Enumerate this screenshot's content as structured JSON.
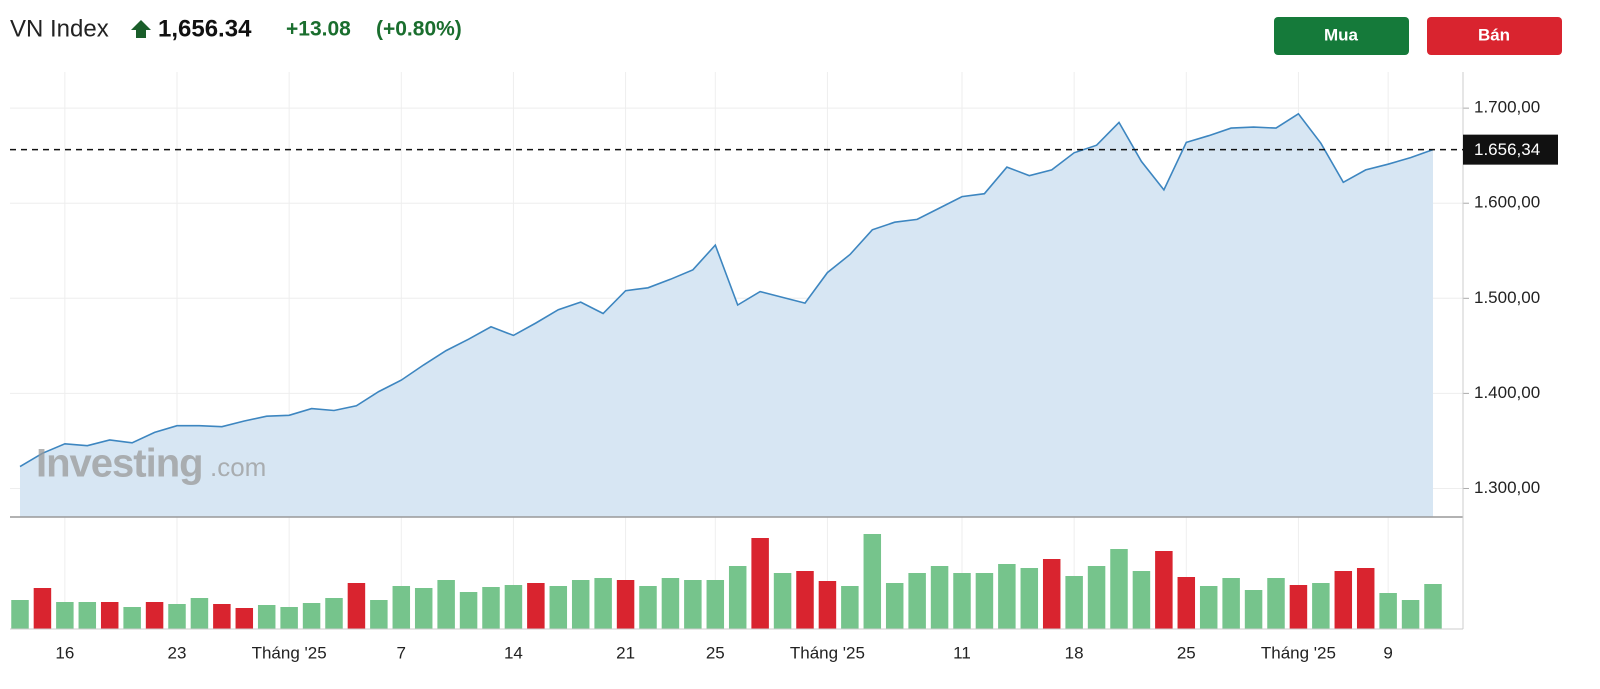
{
  "header": {
    "symbol": "VN Index",
    "price": "1,656.34",
    "change": "+13.08",
    "change_pct": "(+0.80%)"
  },
  "buttons": [
    "Mua",
    "Bán"
  ],
  "watermark": {
    "brand": "Investing",
    "suffix": ".com"
  },
  "chart_data": [
    {
      "type": "area",
      "categories": [
        null,
        null,
        "16",
        null,
        null,
        null,
        null,
        "23",
        null,
        null,
        null,
        null,
        "Tháng '25",
        null,
        null,
        null,
        null,
        "7",
        null,
        null,
        null,
        null,
        "14",
        null,
        null,
        null,
        null,
        "21",
        null,
        null,
        null,
        "25",
        null,
        null,
        null,
        null,
        "Tháng '25",
        null,
        null,
        null,
        null,
        null,
        "11",
        null,
        null,
        null,
        null,
        "18",
        null,
        null,
        null,
        null,
        "25",
        null,
        null,
        null,
        null,
        "Tháng '25",
        null,
        null,
        null,
        "9",
        null,
        null
      ],
      "values": [
        1323,
        1337,
        1347,
        1345,
        1351,
        1348,
        1359,
        1366,
        1366,
        1365,
        1371,
        1376,
        1377,
        1384,
        1382,
        1387,
        1402,
        1414,
        1430,
        1445,
        1457,
        1470,
        1461,
        1474,
        1488,
        1496,
        1484,
        1508,
        1511,
        1520,
        1530,
        1556,
        1493,
        1507,
        1501,
        1495,
        1527,
        1546,
        1572,
        1580,
        1583,
        1595,
        1607,
        1610,
        1638,
        1629,
        1635,
        1653,
        1661,
        1685,
        1644,
        1614,
        1664,
        1671,
        1679,
        1680,
        1679,
        1694,
        1663,
        1622,
        1635,
        1641,
        1648,
        1656.34
      ],
      "color": "#3d86c0",
      "fill": "#d7e6f3",
      "ylim": [
        1270,
        1738
      ],
      "yticks": [
        {
          "value": 1300,
          "label": "1.300,00"
        },
        {
          "value": 1400,
          "label": "1.400,00"
        },
        {
          "value": 1500,
          "label": "1.500,00"
        },
        {
          "value": 1600,
          "label": "1.600,00"
        },
        {
          "value": 1700,
          "label": "1.700,00"
        }
      ],
      "last_price": {
        "value": 1656.34,
        "label": "1.656,34"
      },
      "grid": true
    },
    {
      "type": "bar",
      "values": [
        29,
        41,
        27,
        27,
        27,
        22,
        27,
        25,
        31,
        25,
        21,
        24,
        22,
        26,
        31,
        46,
        29,
        43,
        41,
        49,
        37,
        42,
        44,
        46,
        43,
        49,
        51,
        49,
        43,
        51,
        49,
        49,
        63,
        91,
        56,
        58,
        48,
        43,
        95,
        46,
        56,
        63,
        56,
        56,
        65,
        61,
        70,
        53,
        63,
        80,
        58,
        78,
        52,
        43,
        51,
        39,
        51,
        44,
        46,
        58,
        61,
        36,
        29,
        45
      ],
      "colors": [
        "#76c48c",
        "#d9242f",
        "#76c48c",
        "#76c48c",
        "#d9242f",
        "#76c48c",
        "#d9242f",
        "#76c48c",
        "#76c48c",
        "#d9242f",
        "#d9242f",
        "#76c48c",
        "#76c48c",
        "#76c48c",
        "#76c48c",
        "#d9242f",
        "#76c48c",
        "#76c48c",
        "#76c48c",
        "#76c48c",
        "#76c48c",
        "#76c48c",
        "#76c48c",
        "#d9242f",
        "#76c48c",
        "#76c48c",
        "#76c48c",
        "#d9242f",
        "#76c48c",
        "#76c48c",
        "#76c48c",
        "#76c48c",
        "#76c48c",
        "#d9242f",
        "#76c48c",
        "#d9242f",
        "#d9242f",
        "#76c48c",
        "#76c48c",
        "#76c48c",
        "#76c48c",
        "#76c48c",
        "#76c48c",
        "#76c48c",
        "#76c48c",
        "#76c48c",
        "#d9242f",
        "#76c48c",
        "#76c48c",
        "#76c48c",
        "#76c48c",
        "#d9242f",
        "#d9242f",
        "#76c48c",
        "#76c48c",
        "#76c48c",
        "#76c48c",
        "#d9242f",
        "#76c48c",
        "#d9242f",
        "#d9242f",
        "#76c48c",
        "#76c48c",
        "#76c48c"
      ],
      "ylim": [
        0,
        112
      ]
    }
  ]
}
